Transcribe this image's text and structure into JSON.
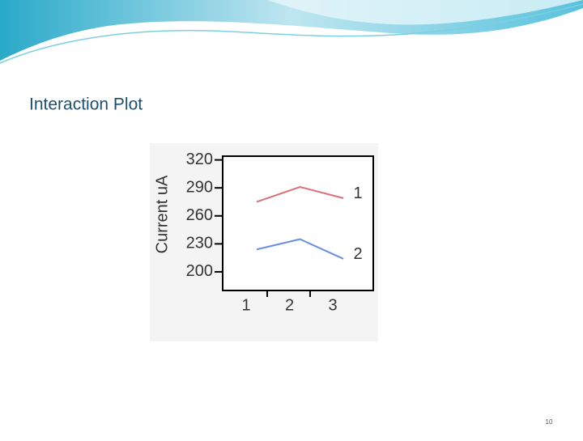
{
  "slide_title": "Interaction Plot",
  "page_number": "10",
  "chart_data": {
    "type": "line",
    "y_label": "Current uA",
    "categories": [
      "1",
      "2",
      "3"
    ],
    "series": [
      {
        "name": "1",
        "color": "#d9707a",
        "values": [
          275,
          291,
          279
        ]
      },
      {
        "name": "2",
        "color": "#6a8ee0",
        "values": [
          224,
          235,
          214
        ]
      }
    ],
    "ylim": [
      180,
      324
    ],
    "yticks": [
      200,
      230,
      260,
      290,
      320
    ]
  }
}
